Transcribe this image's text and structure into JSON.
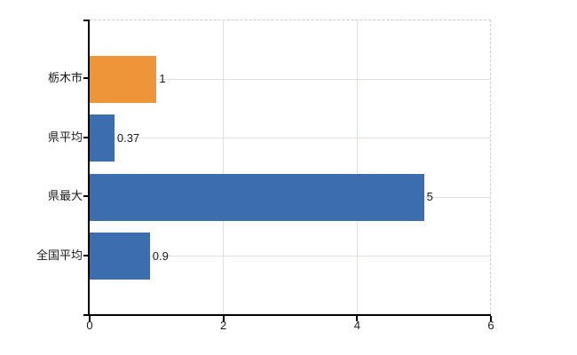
{
  "chart_data": {
    "type": "bar",
    "orientation": "horizontal",
    "title": "",
    "xlabel": "",
    "ylabel": "",
    "categories": [
      "栃木市",
      "県平均",
      "県最大",
      "全国平均"
    ],
    "values": [
      1,
      0.37,
      5,
      0.9
    ],
    "value_labels": [
      "1",
      "0.37",
      "5",
      "0.9"
    ],
    "bar_colors": [
      "#EF9539",
      "#3C6DAF",
      "#3C6DAF",
      "#3C6DAF"
    ],
    "xlim": [
      0,
      6
    ],
    "xticks": [
      0,
      2,
      4,
      6
    ],
    "xtick_labels": [
      "0",
      "2",
      "4",
      "6"
    ],
    "grid": true,
    "legend": null,
    "colors": {
      "background": "#ffffff",
      "axis": "#000000",
      "tick": "#000000",
      "gridline": "#dce3dc",
      "dashed_border": "#cccccc",
      "text": "#1a1a1a"
    }
  }
}
